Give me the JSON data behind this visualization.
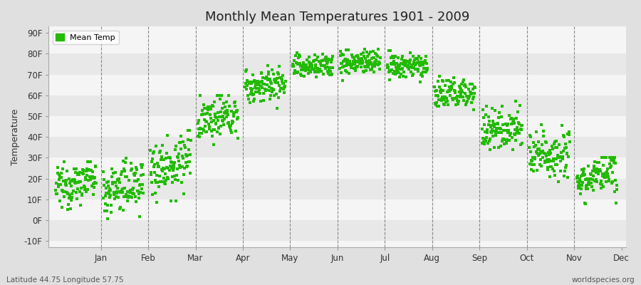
{
  "title": "Monthly Mean Temperatures 1901 - 2009",
  "ylabel": "Temperature",
  "xlabel": "",
  "ytick_labels": [
    "-10F",
    "0F",
    "10F",
    "20F",
    "30F",
    "40F",
    "50F",
    "60F",
    "70F",
    "80F",
    "90F"
  ],
  "ytick_values": [
    -10,
    0,
    10,
    20,
    30,
    40,
    50,
    60,
    70,
    80,
    90
  ],
  "ylim": [
    -13,
    93
  ],
  "months": [
    "Jan",
    "Feb",
    "Mar",
    "Apr",
    "May",
    "Jun",
    "Jul",
    "Aug",
    "Sep",
    "Oct",
    "Nov",
    "Dec"
  ],
  "dot_color": "#22bb00",
  "background_color": "#e0e0e0",
  "plot_bg_color": "#f5f5f5",
  "band_color_dark": "#e8e8e8",
  "band_color_light": "#f5f5f5",
  "legend_label": "Mean Temp",
  "footer_left": "Latitude 44.75 Longitude 57.75",
  "footer_right": "worldspecies.org",
  "n_years": 109,
  "monthly_means": [
    18,
    16,
    27,
    49,
    65,
    74,
    76,
    74,
    61,
    44,
    32,
    21
  ],
  "monthly_stds": [
    5,
    6,
    7,
    5,
    4,
    3,
    3,
    3,
    4,
    5,
    6,
    5
  ],
  "monthly_mins": [
    -5,
    -3,
    5,
    35,
    52,
    65,
    65,
    63,
    48,
    30,
    15,
    8
  ],
  "monthly_maxs": [
    28,
    30,
    43,
    60,
    76,
    83,
    83,
    82,
    70,
    58,
    48,
    30
  ],
  "trend_slopes": [
    0.05,
    0.04,
    0.04,
    0.03,
    0.02,
    0.01,
    0.01,
    0.01,
    0.02,
    0.03,
    0.04,
    0.04
  ]
}
